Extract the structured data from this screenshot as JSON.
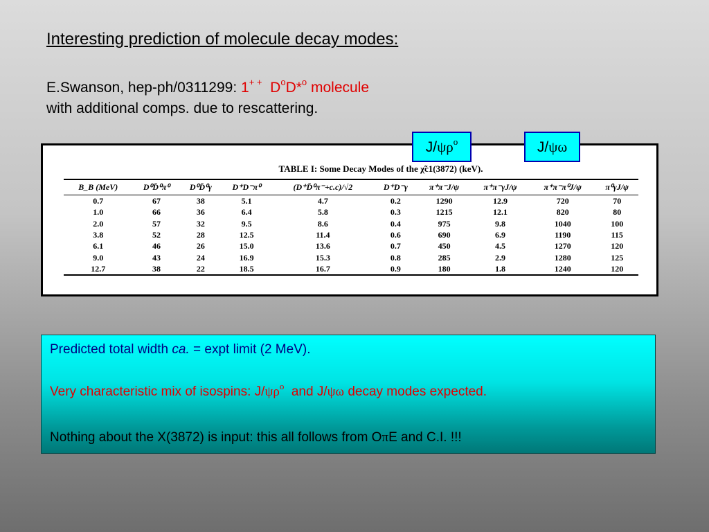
{
  "title": "Interesting prediction of molecule decay modes:",
  "reference": {
    "author": "E.Swanson, hep-ph/0311299:",
    "state": "1",
    "state_sup": "+ +",
    "d": "D",
    "sup_o1": "o",
    "dstar": "D*",
    "sup_o2": "o",
    "molecule": "molecule",
    "line2": "with additional comps. due to rescattering."
  },
  "tags": {
    "tag1": {
      "j": "J/",
      "greek": "ψρ",
      "sup": "o"
    },
    "tag2": {
      "j": "J/",
      "greek": "ψω"
    }
  },
  "table": {
    "caption": "TABLE I: Some Decay Modes of the χ̃c1(3872) (keV).",
    "headers": [
      "B_B (MeV)",
      "D⁰D̄⁰π⁰",
      "D⁰D̄⁰γ",
      "D⁺D⁻π⁰",
      "(D⁺D̄⁰π⁻+c.c)/√2",
      "D⁺D⁻γ",
      "π⁺π⁻J/ψ",
      "π⁺π⁻γJ/ψ",
      "π⁺π⁻π⁰J/ψ",
      "π⁰γJ/ψ"
    ],
    "rows": [
      [
        "0.7",
        "67",
        "38",
        "5.1",
        "4.7",
        "0.2",
        "1290",
        "12.9",
        "720",
        "70"
      ],
      [
        "1.0",
        "66",
        "36",
        "6.4",
        "5.8",
        "0.3",
        "1215",
        "12.1",
        "820",
        "80"
      ],
      [
        "2.0",
        "57",
        "32",
        "9.5",
        "8.6",
        "0.4",
        "975",
        "9.8",
        "1040",
        "100"
      ],
      [
        "3.8",
        "52",
        "28",
        "12.5",
        "11.4",
        "0.6",
        "690",
        "6.9",
        "1190",
        "115"
      ],
      [
        "6.1",
        "46",
        "26",
        "15.0",
        "13.6",
        "0.7",
        "450",
        "4.5",
        "1270",
        "120"
      ],
      [
        "9.0",
        "43",
        "24",
        "16.9",
        "15.3",
        "0.8",
        "285",
        "2.9",
        "1280",
        "125"
      ],
      [
        "12.7",
        "38",
        "22",
        "18.5",
        "16.7",
        "0.9",
        "180",
        "1.8",
        "1240",
        "120"
      ]
    ]
  },
  "info": {
    "p1_a": "Predicted total width ",
    "p1_b": "ca.",
    "p1_c": " = expt limit (2 MeV).",
    "p2_a": "Very characteristic mix of isospins: J/",
    "p2_g1": "ψρ",
    "p2_sup": "o",
    "p2_b": "  and J/",
    "p2_g2": "ψω",
    "p2_c": " decay modes expected.",
    "p3_a": "Nothing about the X(3872) is input: this all follows from O",
    "p3_pi": "π",
    "p3_b": "E and C.I. !!!"
  }
}
